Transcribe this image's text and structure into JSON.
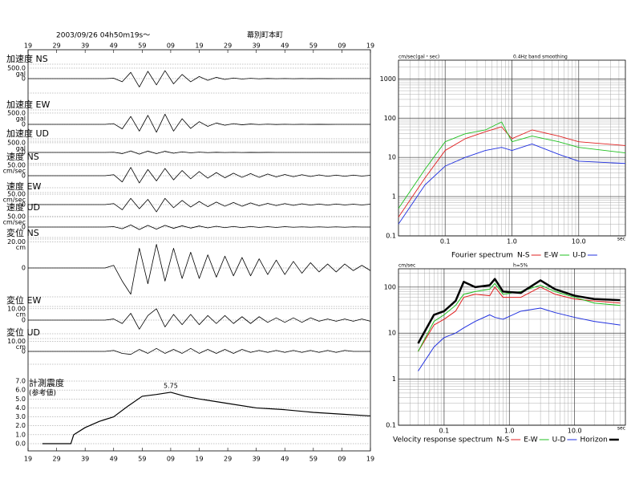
{
  "chart_data": [
    {
      "type": "waveform",
      "title": "2003/09/26  04h50m19s～",
      "location": "幕別町本町",
      "xlim": [
        0,
        120
      ],
      "xticks": [
        {
          "value": 0,
          "label": "19"
        },
        {
          "value": 10,
          "label": "29"
        },
        {
          "value": 20,
          "label": "39"
        },
        {
          "value": 30,
          "label": "49"
        },
        {
          "value": 40,
          "label": "59"
        },
        {
          "value": 50,
          "label": "09"
        },
        {
          "value": 60,
          "label": "19"
        },
        {
          "value": 70,
          "label": "29"
        },
        {
          "value": 80,
          "label": "39"
        },
        {
          "value": 90,
          "label": "49"
        },
        {
          "value": 100,
          "label": "59"
        },
        {
          "value": 110,
          "label": "09"
        },
        {
          "value": 120,
          "label": "19"
        }
      ],
      "x": [
        0,
        3,
        6,
        9,
        12,
        15,
        18,
        21,
        24,
        27,
        30,
        33,
        36,
        39,
        42,
        45,
        48,
        51,
        54,
        57,
        60,
        63,
        66,
        69,
        72,
        75,
        78,
        81,
        84,
        87,
        90,
        93,
        96,
        99,
        102,
        105,
        108,
        111,
        114,
        117,
        120
      ],
      "series": [
        {
          "name": "加速度 NS",
          "unit": "gal",
          "color": "#000000",
          "ylim": [
            -690,
            690
          ],
          "yticks": [
            0,
            {
              "value": 500,
              "label": "500.0"
            }
          ],
          "values": [
            0,
            0,
            0,
            0,
            0,
            0,
            0,
            0,
            0,
            0,
            20,
            -150,
            300,
            -400,
            350,
            -300,
            380,
            -250,
            200,
            -150,
            100,
            -80,
            60,
            -40,
            30,
            -20,
            15,
            -10,
            8,
            -5,
            5,
            -4,
            3,
            -2,
            2,
            -2,
            1,
            -1,
            1,
            0,
            0
          ]
        },
        {
          "name": "加速度 EW",
          "unit": "gal",
          "color": "#000000",
          "ylim": [
            -640,
            640
          ],
          "yticks": [
            0,
            {
              "value": 500,
              "label": "500.0"
            }
          ],
          "values": [
            0,
            0,
            0,
            0,
            0,
            0,
            0,
            0,
            0,
            0,
            30,
            -200,
            350,
            -300,
            400,
            -350,
            450,
            -300,
            250,
            -180,
            120,
            -90,
            60,
            -40,
            30,
            -20,
            15,
            -10,
            8,
            -6,
            5,
            -4,
            3,
            -2,
            2,
            -2,
            1,
            -1,
            1,
            0,
            0
          ]
        },
        {
          "name": "加速度 UD",
          "unit": "gal",
          "color": "#000000",
          "ylim": [
            -580,
            580
          ],
          "yticks": [
            0,
            {
              "value": 500,
              "label": "500.0"
            }
          ],
          "values": [
            0,
            0,
            0,
            0,
            0,
            0,
            0,
            0,
            0,
            0,
            10,
            -60,
            80,
            -90,
            70,
            -60,
            60,
            -40,
            30,
            -20,
            15,
            -10,
            8,
            -6,
            5,
            -4,
            3,
            -2,
            2,
            -1,
            1,
            -1,
            1,
            0,
            0,
            0,
            0,
            0,
            0,
            0,
            0
          ]
        },
        {
          "name": "速度 NS",
          "unit": "cm/sec",
          "color": "#000000",
          "ylim": [
            -58,
            58
          ],
          "yticks": [
            0,
            {
              "value": 50,
              "label": "50.00"
            }
          ],
          "values": [
            0,
            0,
            0,
            0,
            0,
            0,
            0,
            0,
            0,
            0,
            5,
            -30,
            40,
            -35,
            30,
            -25,
            35,
            -20,
            25,
            -15,
            20,
            -12,
            15,
            -10,
            12,
            -8,
            10,
            -8,
            8,
            -6,
            6,
            -5,
            5,
            -4,
            4,
            -3,
            3,
            -3,
            3,
            -2,
            2
          ]
        },
        {
          "name": "速度 EW",
          "unit": "cm/sec",
          "color": "#000000",
          "ylim": [
            -58,
            58
          ],
          "yticks": [
            0,
            {
              "value": 50,
              "label": "50.00"
            }
          ],
          "values": [
            0,
            0,
            0,
            0,
            0,
            0,
            0,
            0,
            0,
            0,
            5,
            -25,
            30,
            -20,
            25,
            -35,
            30,
            -15,
            20,
            -12,
            15,
            -10,
            12,
            -8,
            10,
            -8,
            8,
            -6,
            6,
            -5,
            5,
            -4,
            4,
            -3,
            3,
            -3,
            3,
            -2,
            2,
            -2,
            2
          ]
        },
        {
          "name": "速度 UD",
          "unit": "cm/sec",
          "color": "#000000",
          "ylim": [
            -50,
            50
          ],
          "yticks": [
            0,
            {
              "value": 50,
              "label": "50.00"
            }
          ],
          "values": [
            0,
            0,
            0,
            0,
            0,
            0,
            0,
            0,
            0,
            0,
            2,
            -8,
            10,
            -12,
            8,
            -10,
            8,
            -6,
            6,
            -5,
            5,
            -4,
            4,
            -3,
            3,
            -3,
            3,
            -2,
            2,
            -2,
            2,
            -1,
            1,
            -1,
            1,
            -1,
            1,
            -1,
            1,
            0,
            0
          ]
        },
        {
          "name": "変位 NS",
          "unit": "cm",
          "color": "#000000",
          "ylim": [
            -22,
            22
          ],
          "yticks": [
            0,
            {
              "value": 20,
              "label": "20.00"
            }
          ],
          "values": [
            0,
            0,
            0,
            0,
            0,
            0,
            0,
            0,
            0,
            0,
            2,
            -10,
            -20,
            15,
            -12,
            18,
            -10,
            15,
            -8,
            12,
            -8,
            10,
            -7,
            9,
            -6,
            8,
            -6,
            7,
            -5,
            6,
            -5,
            5,
            -4,
            4,
            -3,
            3,
            -3,
            3,
            -2,
            2,
            -2
          ]
        },
        {
          "name": "変位 EW",
          "unit": "cm",
          "color": "#000000",
          "ylim": [
            -12,
            12
          ],
          "yticks": [
            0,
            {
              "value": 10,
              "label": "10.00"
            }
          ],
          "values": [
            0,
            0,
            0,
            0,
            0,
            0,
            0,
            0,
            0,
            0,
            1,
            -3,
            6,
            -8,
            4,
            10,
            -6,
            5,
            -4,
            5,
            -4,
            4,
            -3,
            4,
            -3,
            3,
            -3,
            3,
            -2,
            2,
            -2,
            2,
            -2,
            2,
            -1,
            1,
            -1,
            1,
            -1,
            1,
            -1
          ]
        },
        {
          "name": "変位 UD",
          "unit": "cm",
          "color": "#000000",
          "ylim": [
            -13,
            13
          ],
          "yticks": [
            0,
            {
              "value": 10,
              "label": "10.00"
            }
          ],
          "values": [
            0,
            0,
            0,
            0,
            0,
            0,
            0,
            0,
            0,
            0,
            1,
            -2,
            -3,
            2,
            -2,
            3,
            -2,
            2,
            -2,
            3,
            -2,
            2,
            -2,
            2,
            -2,
            2,
            -1,
            1,
            -1,
            1,
            -1,
            1,
            -1,
            1,
            -1,
            1,
            -1,
            1,
            0,
            0,
            0
          ]
        }
      ]
    },
    {
      "type": "line",
      "ylabel": "計測震度",
      "ysublabel": "(参考値)",
      "color": "#000000",
      "x": [
        5,
        15,
        16,
        20,
        25,
        30,
        35,
        40,
        45,
        50,
        55,
        60,
        70,
        80,
        90,
        100,
        110,
        120
      ],
      "values": [
        0,
        0,
        1,
        1.8,
        2.5,
        3,
        4.2,
        5.3,
        5.5,
        5.75,
        5.3,
        5,
        4.5,
        4,
        3.8,
        3.5,
        3.3,
        3.1
      ],
      "value_labels": [
        null,
        null,
        null,
        null,
        null,
        null,
        null,
        null,
        null,
        "5.75",
        null,
        null,
        null,
        null,
        null,
        null,
        null,
        null
      ],
      "ylim": [
        0,
        7
      ],
      "yticks": [
        {
          "value": 0,
          "label": "0.0"
        },
        {
          "value": 1,
          "label": "1.0"
        },
        {
          "value": 2,
          "label": "2.0"
        },
        {
          "value": 3,
          "label": "3.0"
        },
        {
          "value": 4,
          "label": "4.0"
        },
        {
          "value": 5,
          "label": "5.0"
        },
        {
          "value": 6,
          "label": "6.0"
        },
        {
          "value": 7,
          "label": "7.0"
        }
      ]
    },
    {
      "type": "loglog",
      "title": "Fourier spectrum",
      "ylabel": "cm/sec(gal・sec)",
      "subtitle": "0.4Hz band smoothing",
      "xunit": "sec",
      "minor_grid": true,
      "xlim": [
        0.02,
        50
      ],
      "ylim": [
        0.1,
        3000
      ],
      "xticks": [
        0.1,
        {
          "value": 1,
          "label": "1.0"
        },
        {
          "value": 10,
          "label": "10.0"
        }
      ],
      "yticks": [
        0.1,
        1,
        10,
        100,
        1000
      ],
      "x": [
        0.02,
        0.05,
        0.1,
        0.2,
        0.4,
        0.7,
        1,
        2,
        5,
        10,
        50
      ],
      "series": [
        {
          "name": "N-S",
          "color": "#e02020",
          "values": [
            0.3,
            3,
            15,
            30,
            45,
            60,
            30,
            50,
            35,
            25,
            20
          ]
        },
        {
          "name": "E-W",
          "color": "#20c020",
          "values": [
            0.5,
            5,
            25,
            40,
            50,
            80,
            25,
            35,
            25,
            18,
            13
          ]
        },
        {
          "name": "U-D",
          "color": "#2030e0",
          "values": [
            0.2,
            2,
            6,
            10,
            15,
            18,
            15,
            22,
            12,
            8,
            7
          ]
        }
      ]
    },
    {
      "type": "loglog",
      "title": "Velocity response spectrum",
      "ylabel": "cm/sec",
      "subtitle": "h=5%",
      "xunit": "sec",
      "minor_grid": true,
      "xlim": [
        0.02,
        60
      ],
      "ylim": [
        0.1,
        250
      ],
      "xticks": [
        0.1,
        {
          "value": 1,
          "label": "1.0"
        },
        {
          "value": 10,
          "label": "10.0"
        }
      ],
      "yticks": [
        0.1,
        1,
        10,
        100
      ],
      "x": [
        0.04,
        0.07,
        0.1,
        0.15,
        0.2,
        0.3,
        0.5,
        0.6,
        0.8,
        1.5,
        3,
        5,
        10,
        20,
        50
      ],
      "series": [
        {
          "name": "N-S",
          "color": "#e02020",
          "width": 1,
          "values": [
            4,
            15,
            20,
            30,
            60,
            70,
            65,
            100,
            60,
            60,
            100,
            70,
            55,
            50,
            45
          ]
        },
        {
          "name": "E-W",
          "color": "#20c020",
          "width": 1,
          "values": [
            4,
            18,
            25,
            40,
            70,
            80,
            90,
            120,
            70,
            80,
            110,
            80,
            60,
            45,
            40
          ]
        },
        {
          "name": "U-D",
          "color": "#2030e0",
          "width": 1,
          "values": [
            1.5,
            5,
            8,
            10,
            13,
            18,
            25,
            22,
            20,
            30,
            35,
            28,
            22,
            18,
            15
          ]
        },
        {
          "name": "Horizon",
          "color": "#000000",
          "width": 2.5,
          "values": [
            6,
            25,
            30,
            50,
            130,
            100,
            110,
            150,
            80,
            75,
            140,
            90,
            65,
            55,
            52
          ]
        }
      ]
    }
  ]
}
